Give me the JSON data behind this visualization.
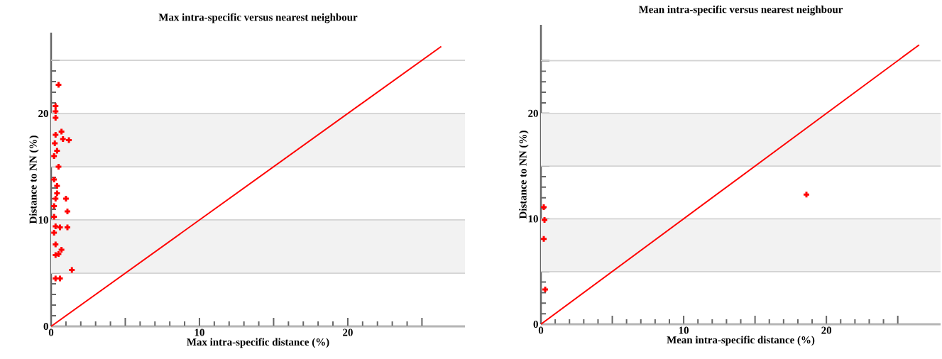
{
  "chart_data": [
    {
      "type": "scatter",
      "title": "Max intra-specific versus nearest neighbour",
      "xlabel": "Max intra-specific distance (%)",
      "ylabel": "Distance to NN (%)",
      "grid": "y",
      "xlim": [
        0,
        27.9
      ],
      "ylim": [
        0,
        27.6
      ],
      "xticks": [
        0,
        {
          "value": 5,
          "label": null
        },
        10,
        {
          "value": 15,
          "label": null
        },
        20,
        {
          "value": 25,
          "label": null
        }
      ],
      "yticks": [
        0,
        {
          "value": 5,
          "label": null
        },
        10,
        {
          "value": 15,
          "label": null
        },
        20,
        {
          "value": 25,
          "label": null
        }
      ],
      "bands": [
        {
          "axis": "y",
          "from": 5,
          "to": 10,
          "color": "#f2f2f2"
        },
        {
          "axis": "y",
          "from": 15,
          "to": 20,
          "color": "#f2f2f2"
        }
      ],
      "series": [
        {
          "marker": "cross",
          "color": "#ff0000",
          "x": [
            0.5,
            0.3,
            0.3,
            0.3,
            0.7,
            0.3,
            1.2,
            0.8,
            0.25,
            0.4,
            0.2,
            0.5,
            0.2,
            0.4,
            0.4,
            0.3,
            1.0,
            0.2,
            1.1,
            0.2,
            0.3,
            0.6,
            1.1,
            0.2,
            0.3,
            0.7,
            0.5,
            0.3,
            1.4,
            0.3,
            0.6
          ],
          "values": [
            22.7,
            20.7,
            20.2,
            19.6,
            18.3,
            18.0,
            17.5,
            17.6,
            17.2,
            16.5,
            16.0,
            15.0,
            13.8,
            13.2,
            12.5,
            12.0,
            12.0,
            11.3,
            10.8,
            10.3,
            9.4,
            9.3,
            9.3,
            8.8,
            7.7,
            7.2,
            6.8,
            6.7,
            5.3,
            4.5,
            4.5
          ]
        },
        {
          "type": "line",
          "color": "#ff0000",
          "x": [
            0,
            26.3
          ],
          "values": [
            0,
            26.3
          ]
        }
      ]
    },
    {
      "type": "scatter",
      "title": "Mean intra-specific versus  nearest neighbour",
      "xlabel": "Mean intra-specific distance (%)",
      "ylabel": "Distance to NN (%)",
      "grid": "y",
      "xlim": [
        0,
        28
      ],
      "ylim": [
        0,
        28.4
      ],
      "xticks": [
        0,
        {
          "value": 5,
          "label": null
        },
        10,
        {
          "value": 15,
          "label": null
        },
        20,
        {
          "value": 25,
          "label": null
        }
      ],
      "yticks": [
        0,
        {
          "value": 5,
          "label": null
        },
        10,
        {
          "value": 15,
          "label": null
        },
        20,
        {
          "value": 25,
          "label": null
        }
      ],
      "bands": [
        {
          "axis": "y",
          "from": 5,
          "to": 10,
          "color": "#f2f2f2"
        },
        {
          "axis": "y",
          "from": 15,
          "to": 20,
          "color": "#f2f2f2"
        }
      ],
      "series": [
        {
          "marker": "cross",
          "color": "#ff0000",
          "x": [
            0.2,
            0.25,
            0.2,
            0.3,
            18.6
          ],
          "values": [
            11.1,
            9.9,
            8.1,
            3.3,
            12.3
          ]
        },
        {
          "type": "line",
          "color": "#ff0000",
          "x": [
            0,
            26.5
          ],
          "values": [
            0,
            26.5
          ]
        }
      ]
    }
  ]
}
